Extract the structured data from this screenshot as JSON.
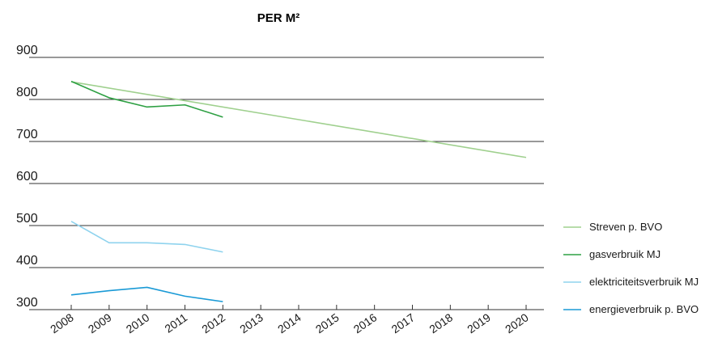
{
  "chart_data": {
    "type": "line",
    "title": "PER M²",
    "x": [
      "2008",
      "2009",
      "2010",
      "2011",
      "2012",
      "2013",
      "2014",
      "2015",
      "2016",
      "2017",
      "2018",
      "2019",
      "2020"
    ],
    "y_ticks": [
      "900",
      "800",
      "700",
      "600",
      "500",
      "400",
      "300"
    ],
    "ylim": [
      300,
      900
    ],
    "grid": true,
    "legend_position": "right",
    "series": [
      {
        "name": "Streven p. BVO",
        "color": "#9fd08e",
        "x": [
          "2008",
          "2020"
        ],
        "values": [
          842,
          662
        ]
      },
      {
        "name": "gasverbruik MJ",
        "color": "#2ea043",
        "x": [
          "2008",
          "2009",
          "2010",
          "2011",
          "2012"
        ],
        "values": [
          843,
          804,
          782,
          787,
          758
        ]
      },
      {
        "name": "elektriciteitsverbruik MJ",
        "color": "#8fd3ee",
        "x": [
          "2008",
          "2009",
          "2010",
          "2011",
          "2012"
        ],
        "values": [
          510,
          459,
          459,
          455,
          437
        ]
      },
      {
        "name": "energieverbruik p. BVO",
        "color": "#1a9ad6",
        "x": [
          "2008",
          "2009",
          "2010",
          "2011",
          "2012"
        ],
        "values": [
          335,
          345,
          353,
          332,
          319
        ]
      }
    ]
  }
}
